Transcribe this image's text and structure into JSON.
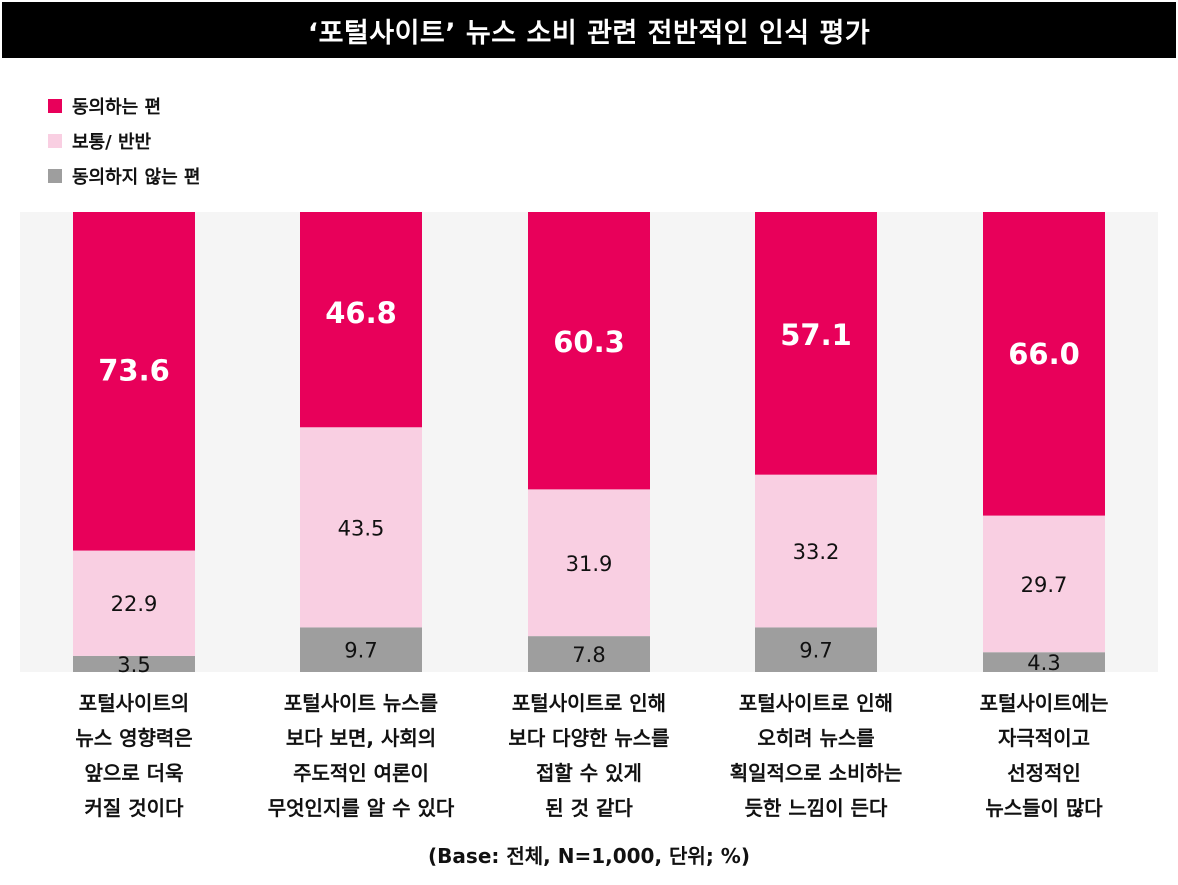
{
  "title": "‘포털사이트’ 뉴스 소비 관련 전반적인 인식 평가",
  "legend": [
    {
      "label": "동의하는 편",
      "color": "#e8005a"
    },
    {
      "label": "보통/ 반반",
      "color": "#f9cfe2"
    },
    {
      "label": "동의하지 않는 편",
      "color": "#9e9e9e"
    }
  ],
  "base_note": "(Base: 전체, N=1,000, 단위; %)",
  "chart_data": {
    "type": "bar",
    "stacked": true,
    "percent_scale": true,
    "categories": [
      "포털사이트의\n뉴스 영향력은\n앞으로 더욱\n커질 것이다",
      "포털사이트 뉴스를\n보다 보면, 사회의\n주도적인 여론이\n무엇인지를 알 수 있다",
      "포털사이트로 인해\n보다 다양한 뉴스를\n접할 수 있게\n된 것 같다",
      "포털사이트로 인해\n오히려 뉴스를\n획일적으로 소비하는\n듯한 느낌이 든다",
      "포털사이트에는\n자극적이고\n선정적인\n뉴스들이 많다"
    ],
    "series": [
      {
        "name": "동의하지 않는 편",
        "values": [
          3.5,
          9.7,
          7.8,
          9.7,
          4.3
        ],
        "labels": [
          "3.5",
          "9.7",
          "7.8",
          "9.7",
          "4.3"
        ]
      },
      {
        "name": "보통/ 반반",
        "values": [
          22.9,
          43.5,
          31.9,
          33.2,
          29.7
        ],
        "labels": [
          "22.9",
          "43.5",
          "31.9",
          "33.2",
          "29.7"
        ]
      },
      {
        "name": "동의하는 편",
        "values": [
          73.6,
          46.8,
          60.3,
          57.1,
          66.0
        ],
        "labels": [
          "73.6",
          "46.8",
          "60.3",
          "57.1",
          "66.0"
        ]
      }
    ],
    "ylim": [
      0,
      100
    ],
    "grid": false,
    "legend_position": "top-left"
  }
}
